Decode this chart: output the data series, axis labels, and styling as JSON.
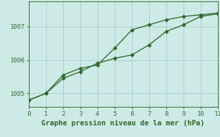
{
  "line1_x": [
    0,
    1,
    2,
    3,
    4,
    5,
    6,
    7,
    8,
    9,
    10,
    11
  ],
  "line1_y": [
    1004.8,
    1005.0,
    1005.55,
    1005.75,
    1005.85,
    1006.35,
    1006.9,
    1007.05,
    1007.2,
    1007.3,
    1007.35,
    1007.4
  ],
  "line2_x": [
    0,
    1,
    2,
    3,
    4,
    5,
    6,
    7,
    8,
    9,
    10,
    11
  ],
  "line2_y": [
    1004.8,
    1005.0,
    1005.45,
    1005.65,
    1005.9,
    1006.05,
    1006.15,
    1006.45,
    1006.85,
    1007.05,
    1007.3,
    1007.38
  ],
  "line_color": "#2d6a2d",
  "bg_color": "#ceeae6",
  "grid_color": "#aacfcb",
  "xlabel": "Graphe pression niveau de la mer (hPa)",
  "xlim": [
    0,
    11
  ],
  "ylim": [
    1004.6,
    1007.75
  ],
  "yticks": [
    1005,
    1006,
    1007
  ],
  "xticks": [
    0,
    1,
    2,
    3,
    4,
    5,
    6,
    7,
    8,
    9,
    10,
    11
  ],
  "xlabel_fontsize": 7.5,
  "tick_fontsize": 6.5,
  "line_width": 1.0,
  "marker": "D",
  "marker_size": 2.8
}
